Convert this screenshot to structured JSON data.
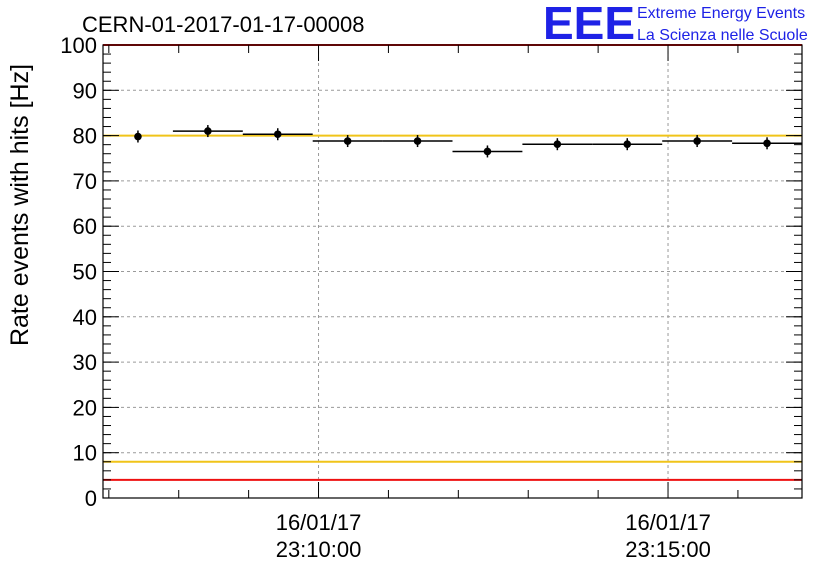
{
  "chart_data": {
    "type": "scatter",
    "title": "CERN-01-2017-01-17-00008",
    "ylabel": "Rate events with hits [Hz]",
    "xlabel": "",
    "ylim": [
      0,
      100
    ],
    "y_ticks": [
      "0",
      "10",
      "20",
      "30",
      "40",
      "50",
      "60",
      "70",
      "80",
      "90",
      "100"
    ],
    "x_ticks": [
      {
        "date": "16/01/17",
        "time": "23:10:00",
        "at": "23:10:00"
      },
      {
        "date": "16/01/17",
        "time": "23:15:00",
        "at": "23:15:00"
      }
    ],
    "xlim": [
      "23:06:55",
      "23:16:55"
    ],
    "grid": true,
    "series": [
      {
        "x": [
          "23:07:25",
          "23:08:25",
          "23:09:25",
          "23:10:25",
          "23:11:25",
          "23:12:25",
          "23:13:25",
          "23:14:25",
          "23:15:25",
          "23:16:25"
        ],
        "y": [
          79.8,
          81.0,
          80.3,
          78.8,
          78.8,
          76.5,
          78.1,
          78.1,
          78.8,
          78.3
        ],
        "xerr_start": [
          "23:07:25",
          "23:07:55",
          "23:08:55",
          "23:09:55",
          "23:10:55",
          "23:11:55",
          "23:12:55",
          "23:13:55",
          "23:14:55",
          "23:15:55"
        ],
        "xerr_end": [
          "23:07:25",
          "23:08:55",
          "23:09:55",
          "23:10:55",
          "23:11:55",
          "23:12:55",
          "23:13:55",
          "23:14:55",
          "23:15:55",
          "23:16:55"
        ]
      }
    ],
    "reference_lines": [
      {
        "y": 100,
        "color": "#ee1111"
      },
      {
        "y": 80,
        "color": "#f0c419"
      },
      {
        "y": 8,
        "color": "#f0c419"
      },
      {
        "y": 4,
        "color": "#ee1111"
      }
    ]
  },
  "logo": {
    "big_text": "EEE",
    "line1": "Extreme Energy Events",
    "line2": "La Scienza nelle Scuole",
    "color": "#1e22e6"
  }
}
